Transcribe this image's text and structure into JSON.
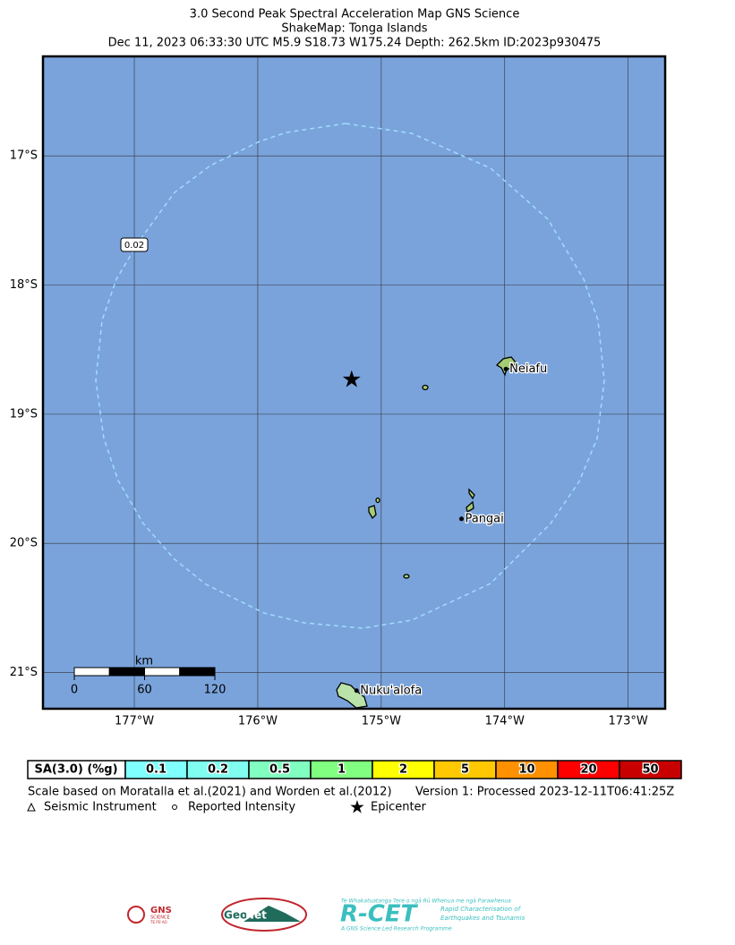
{
  "header": {
    "lines": [
      "3.0 Second Peak Spectral Acceleration Map GNS Science",
      "ShakeMap: Tonga Islands",
      "Dec 11, 2023 06:33:30 UTC M5.9 S18.73 W175.24 Depth: 262.5km ID:2023p930475"
    ]
  },
  "map": {
    "lonlim": [
      -177.74,
      -172.7
    ],
    "latlim": [
      -21.28,
      -16.23
    ],
    "lon_ticks": [
      {
        "value": -177,
        "label": "177°W"
      },
      {
        "value": -176,
        "label": "176°W"
      },
      {
        "value": -175,
        "label": "175°W"
      },
      {
        "value": -174,
        "label": "174°W"
      },
      {
        "value": -173,
        "label": "173°W"
      }
    ],
    "lat_ticks": [
      {
        "value": -17,
        "label": "17°S"
      },
      {
        "value": -18,
        "label": "18°S"
      },
      {
        "value": -19,
        "label": "19°S"
      },
      {
        "value": -20,
        "label": "20°S"
      },
      {
        "value": -21,
        "label": "21°S"
      }
    ],
    "contour_label": "0.02",
    "epicenter": {
      "lon": -175.24,
      "lat": -18.73
    },
    "places": [
      {
        "name": "Neiafu",
        "lon": -173.99,
        "lat": -18.65
      },
      {
        "name": "Pangai",
        "lon": -174.35,
        "lat": -19.81
      },
      {
        "name": "Nuku'alofa",
        "lon": -175.2,
        "lat": -21.14
      }
    ],
    "scale_bar": {
      "unit": "km",
      "ticks": [
        0,
        60,
        120
      ]
    }
  },
  "legend": {
    "label": "SA(3.0) (%g)",
    "items": [
      {
        "value": 0.1,
        "color": "#80ffff"
      },
      {
        "value": 0.2,
        "color": "#80fff0"
      },
      {
        "value": 0.5,
        "color": "#80ffc0"
      },
      {
        "value": 1,
        "color": "#80ff80"
      },
      {
        "value": 2,
        "color": "#ffff00"
      },
      {
        "value": 5,
        "color": "#ffc800"
      },
      {
        "value": 10,
        "color": "#ff9100"
      },
      {
        "value": 20,
        "color": "#ff0000"
      },
      {
        "value": 50,
        "color": "#c80000"
      }
    ]
  },
  "footer": {
    "scale_note": "Scale based on Moratalla et al.(2021) and Worden et al.(2012)",
    "version": "Version 1: Processed 2023-12-11T06:41:25Z",
    "symbols": [
      "Seismic Instrument",
      "Reported Intensity",
      "Epicenter"
    ]
  },
  "logos": {
    "gns": "GNS",
    "gns_sub": "SCIENCE",
    "gns_maori": "TE PŪ AO",
    "geonet_a": "Geo",
    "geonet_b": "Net",
    "rcet_top": "Te Whakatuatanga Tere o ngā Rū Whenua me ngā Parawhenua",
    "rcet": "R-CET",
    "rcet_sub1": "Rapid Characterisation of",
    "rcet_sub2": "Earthquakes and Tsunamis",
    "rcet_bottom": "A GNS Science Led Research Programme"
  }
}
